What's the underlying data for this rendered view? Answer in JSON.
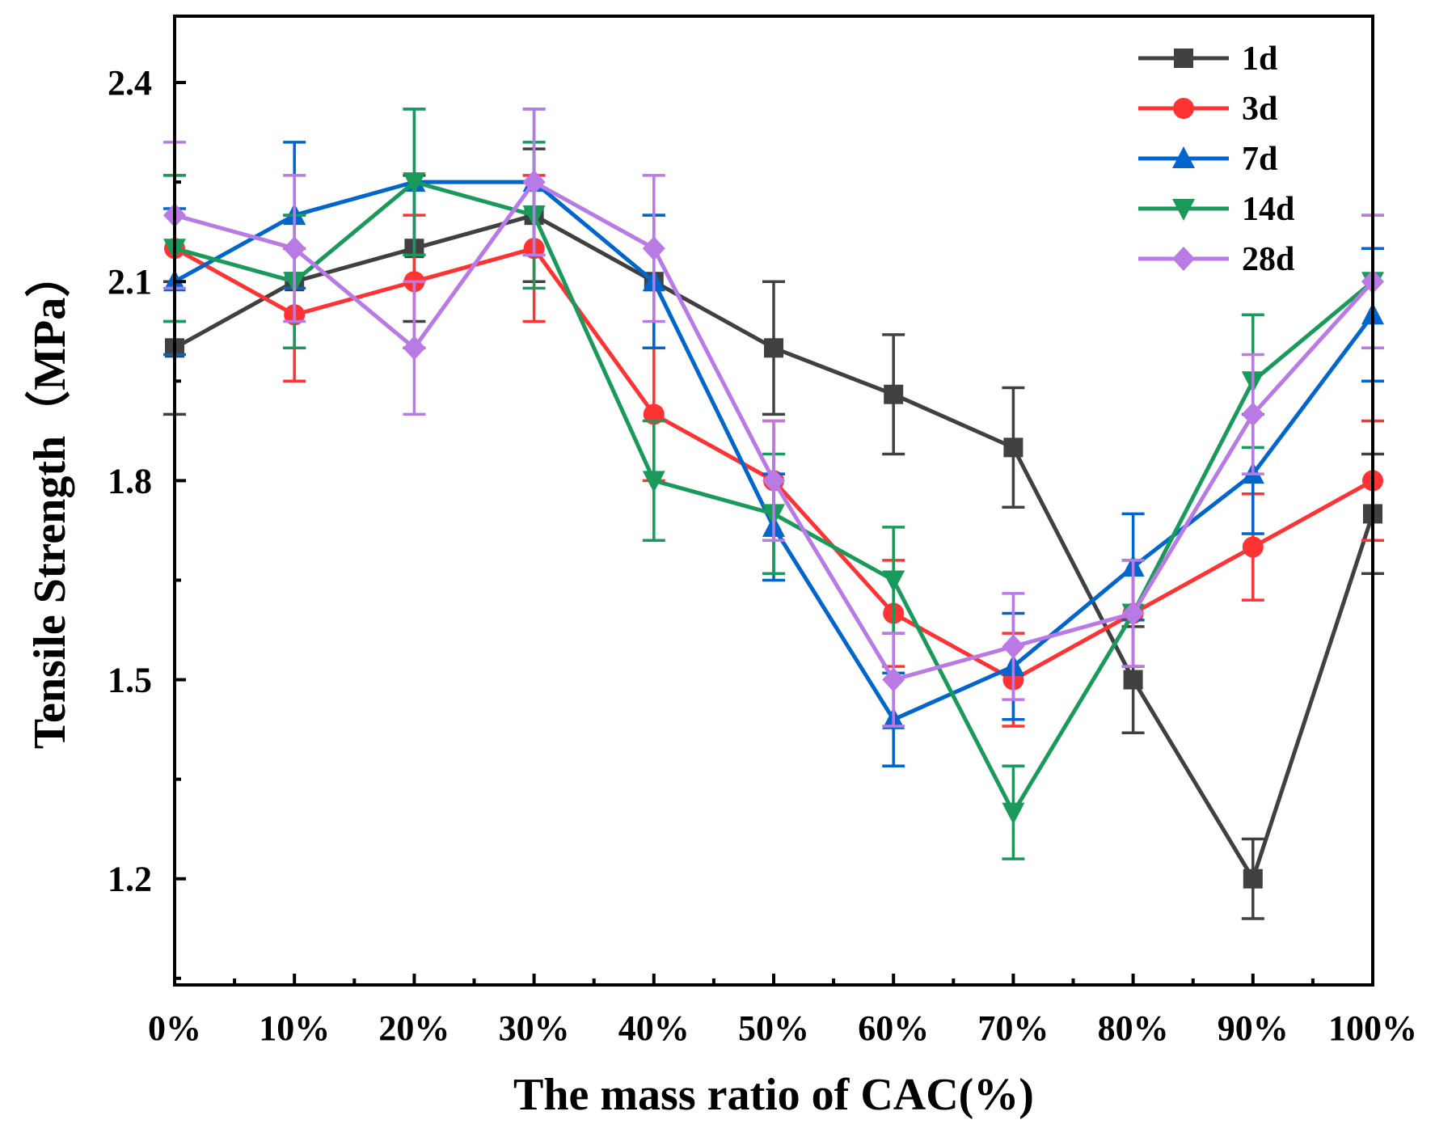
{
  "chart_data": {
    "type": "line",
    "title": "",
    "xlabel": "The mass ratio of CAC(%)",
    "ylabel": "Tensile Strength（MPa）",
    "categories": [
      "0%",
      "10%",
      "20%",
      "30%",
      "40%",
      "50%",
      "60%",
      "70%",
      "80%",
      "90%",
      "100%"
    ],
    "x": [
      0,
      10,
      20,
      30,
      40,
      50,
      60,
      70,
      80,
      90,
      100
    ],
    "xlim": [
      0,
      100
    ],
    "ylim": [
      1.04,
      2.5
    ],
    "yticks": [
      1.2,
      1.5,
      1.8,
      2.1,
      2.4
    ],
    "ytick_labels": [
      "1.2",
      "1.5",
      "1.8",
      "2.1",
      "2.4"
    ],
    "grid": false,
    "legend_position": "top-right",
    "series": [
      {
        "name": "1d",
        "color": "#404040",
        "marker": "square",
        "values": [
          2.0,
          2.1,
          2.15,
          2.2,
          2.1,
          2.0,
          1.93,
          1.85,
          1.5,
          1.2,
          1.75
        ],
        "errors": [
          0.1,
          0.1,
          0.11,
          0.1,
          0.1,
          0.1,
          0.09,
          0.09,
          0.08,
          0.06,
          0.09
        ]
      },
      {
        "name": "3d",
        "color": "#ff3333",
        "marker": "circle",
        "values": [
          2.15,
          2.05,
          2.1,
          2.15,
          1.9,
          1.8,
          1.6,
          1.5,
          1.6,
          1.7,
          1.8
        ],
        "errors": [
          0.11,
          0.1,
          0.1,
          0.11,
          0.1,
          0.09,
          0.08,
          0.07,
          0.08,
          0.08,
          0.09
        ]
      },
      {
        "name": "7d",
        "color": "#0066cc",
        "marker": "triangle-up",
        "values": [
          2.1,
          2.2,
          2.25,
          2.25,
          2.1,
          1.73,
          1.44,
          1.52,
          1.67,
          1.81,
          2.05
        ],
        "errors": [
          0.11,
          0.11,
          0.11,
          0.11,
          0.1,
          0.08,
          0.07,
          0.08,
          0.08,
          0.09,
          0.1
        ]
      },
      {
        "name": "14d",
        "color": "#1a9a5a",
        "marker": "triangle-down",
        "values": [
          2.15,
          2.1,
          2.25,
          2.2,
          1.8,
          1.75,
          1.65,
          1.3,
          1.6,
          1.95,
          2.1
        ],
        "errors": [
          0.11,
          0.1,
          0.11,
          0.11,
          0.09,
          0.09,
          0.08,
          0.07,
          0.08,
          0.1,
          0.1
        ]
      },
      {
        "name": "28d",
        "color": "#b97ae6",
        "marker": "diamond",
        "values": [
          2.2,
          2.15,
          2.0,
          2.25,
          2.15,
          1.8,
          1.5,
          1.55,
          1.6,
          1.9,
          2.1
        ],
        "errors": [
          0.11,
          0.11,
          0.1,
          0.11,
          0.11,
          0.09,
          0.07,
          0.08,
          0.08,
          0.09,
          0.1
        ]
      }
    ]
  }
}
